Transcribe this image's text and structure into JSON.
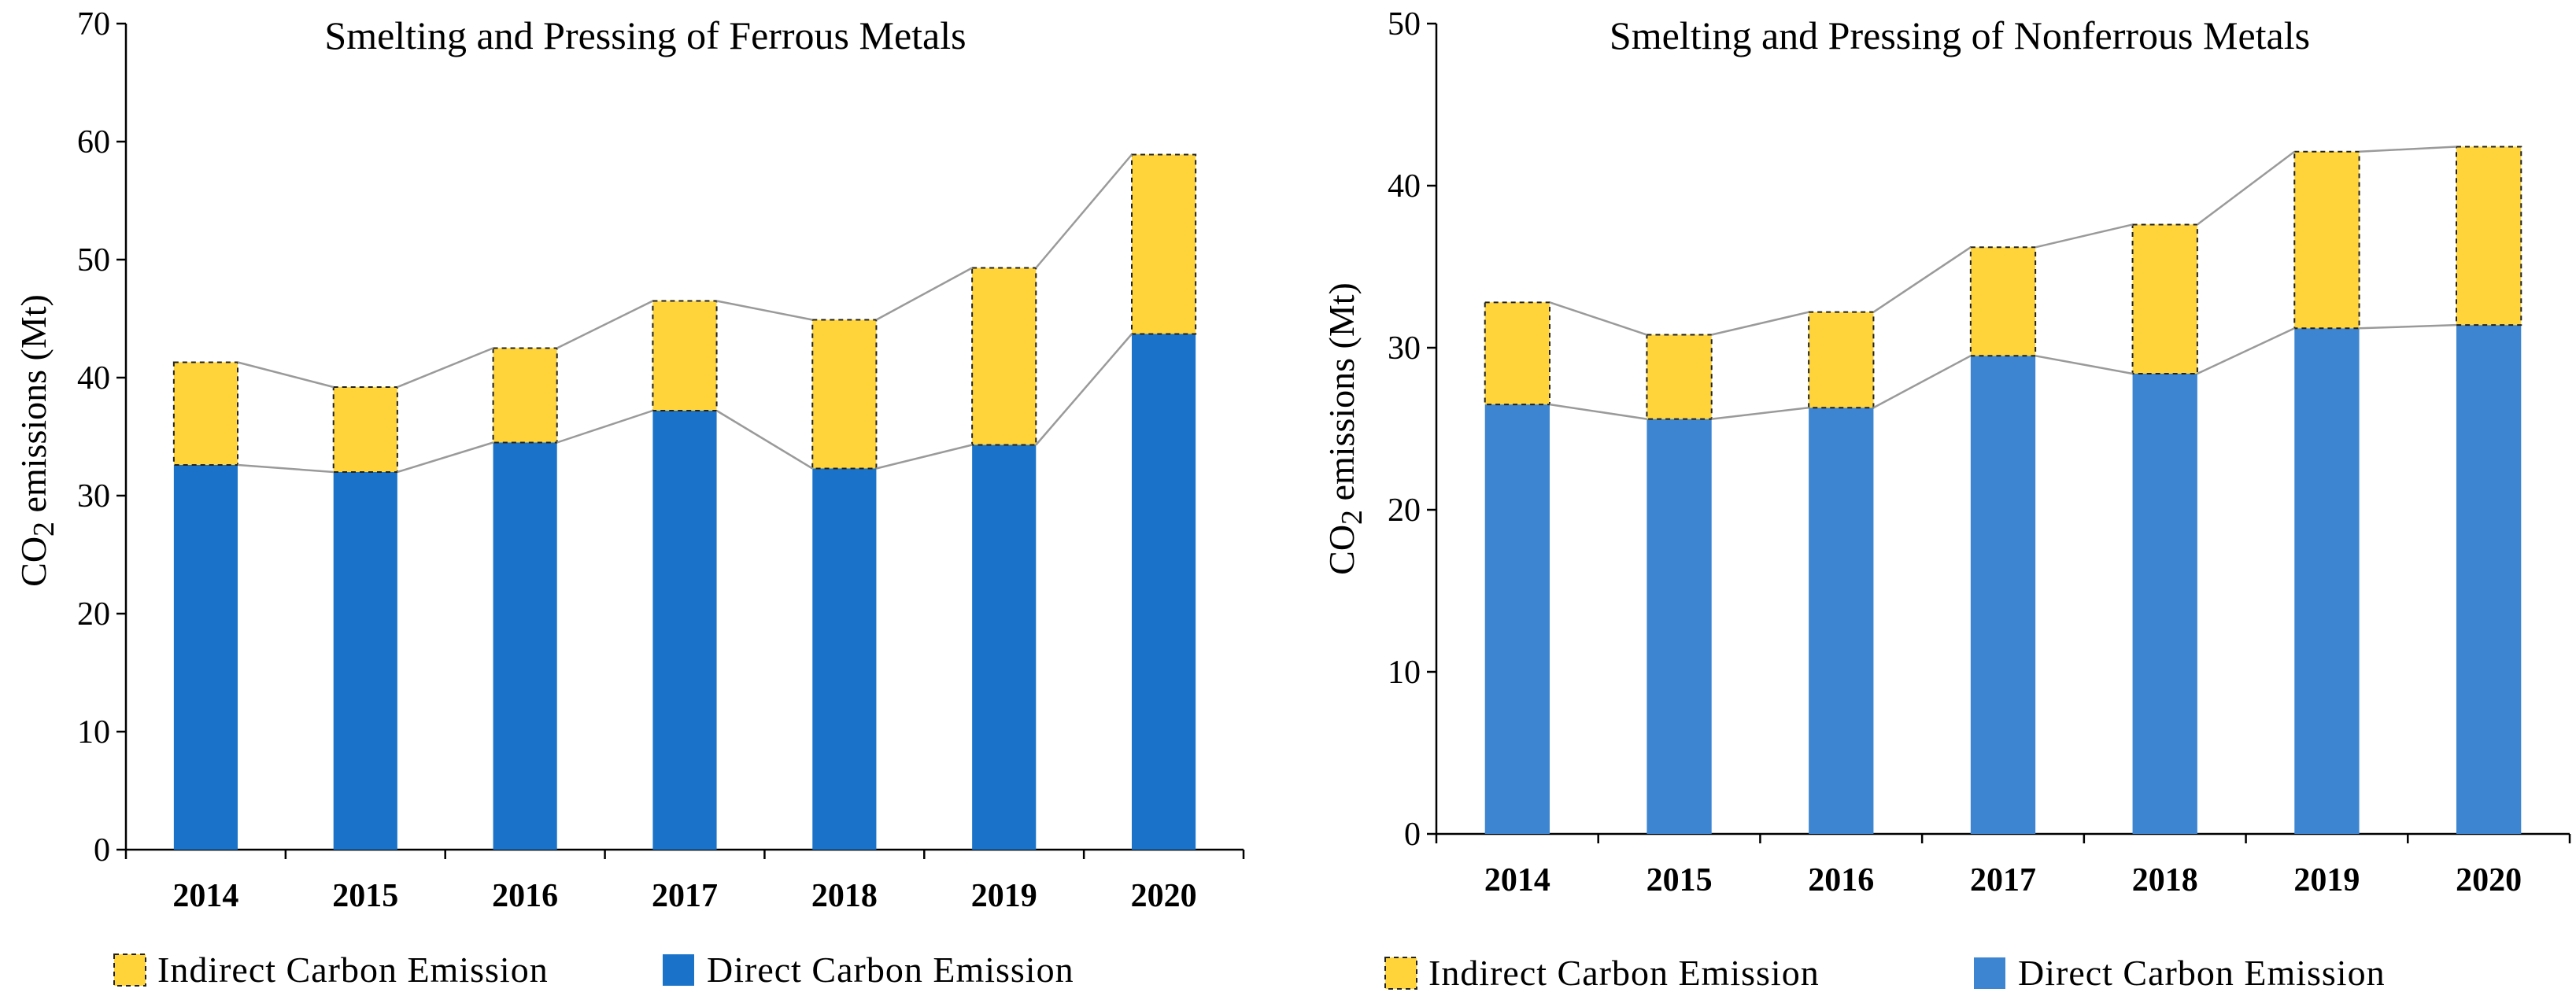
{
  "chart_data": [
    {
      "type": "bar",
      "stacked": true,
      "title": "Smelting and Pressing of Ferrous Metals",
      "ylabel_main": "CO",
      "ylabel_sub": "2",
      "ylabel_rest": " emissions  (Mt)",
      "xlabel": "",
      "categories": [
        "2014",
        "2015",
        "2016",
        "2017",
        "2018",
        "2019",
        "2020"
      ],
      "ylim": [
        0,
        70
      ],
      "yticks": [
        0,
        10,
        20,
        30,
        40,
        50,
        60,
        70
      ],
      "series": [
        {
          "name": "Direct Carbon Emission",
          "values": [
            32.6,
            32.0,
            34.5,
            37.2,
            32.3,
            34.3,
            43.7
          ]
        },
        {
          "name": "Indirect Carbon Emission",
          "values": [
            8.7,
            7.2,
            8.0,
            9.3,
            12.6,
            15.0,
            15.2
          ]
        }
      ],
      "connector_lines": true,
      "legend_position": "bottom",
      "colors": {
        "direct": "#1a73c9",
        "indirect": "#ffd43b"
      }
    },
    {
      "type": "bar",
      "stacked": true,
      "title": "Smelting and Pressing of Nonferrous Metals",
      "ylabel_main": "CO",
      "ylabel_sub": "2",
      "ylabel_rest": " emissions  (Mt)",
      "xlabel": "",
      "categories": [
        "2014",
        "2015",
        "2016",
        "2017",
        "2018",
        "2019",
        "2020"
      ],
      "ylim": [
        0,
        50
      ],
      "yticks": [
        0,
        10,
        20,
        30,
        40,
        50
      ],
      "series": [
        {
          "name": "Direct Carbon Emission",
          "values": [
            26.5,
            25.6,
            26.3,
            29.5,
            28.4,
            31.2,
            31.4
          ]
        },
        {
          "name": "Indirect Carbon Emission",
          "values": [
            6.3,
            5.2,
            5.9,
            6.7,
            9.2,
            10.9,
            11.0
          ]
        }
      ],
      "connector_lines": true,
      "legend_position": "bottom",
      "colors": {
        "direct": "#3d85d0",
        "indirect": "#ffd43b"
      }
    }
  ],
  "legend": {
    "indirect_label": "Indirect Carbon Emission",
    "direct_label": "Direct Carbon Emission"
  }
}
